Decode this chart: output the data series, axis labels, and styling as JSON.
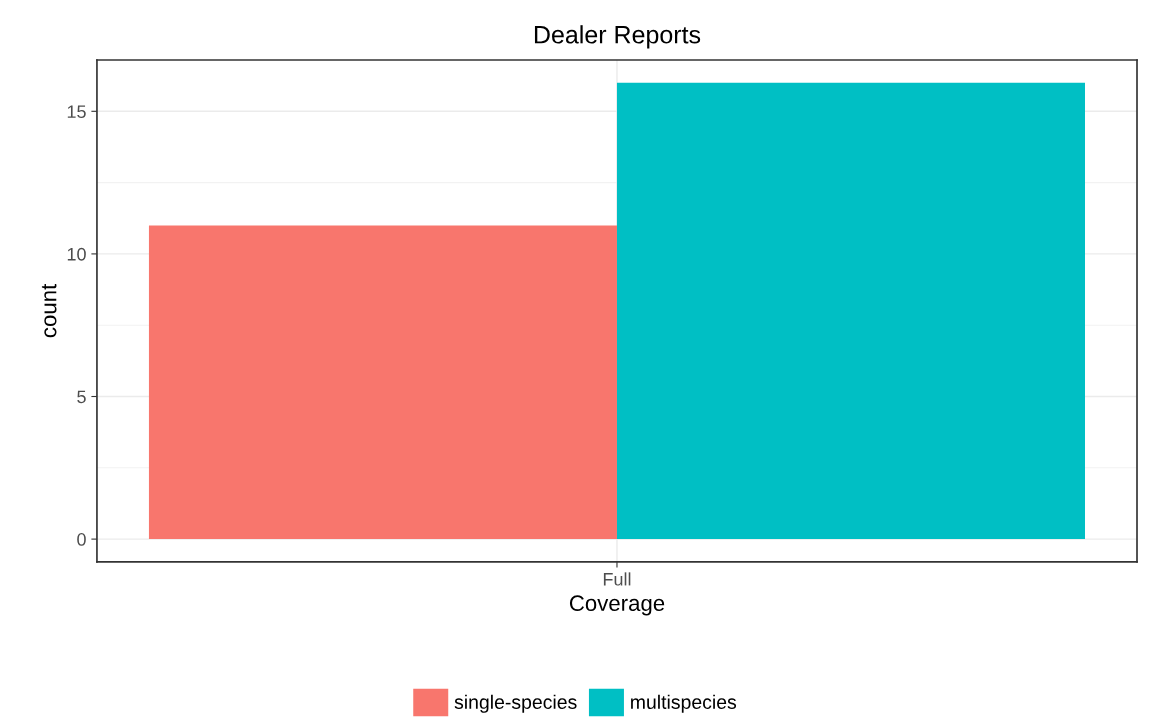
{
  "chart_data": {
    "type": "bar",
    "title": "Dealer Reports",
    "xlabel": "Coverage",
    "ylabel": "count",
    "categories": [
      "Full"
    ],
    "series": [
      {
        "name": "single-species",
        "color": "#f8766d",
        "values": [
          11
        ]
      },
      {
        "name": "multispecies",
        "color": "#00bfc4",
        "values": [
          16
        ]
      }
    ],
    "ylim": [
      -0.8,
      16.8
    ],
    "yticks": [
      0,
      5,
      10,
      15
    ],
    "grid": true,
    "legend": "bottom"
  }
}
